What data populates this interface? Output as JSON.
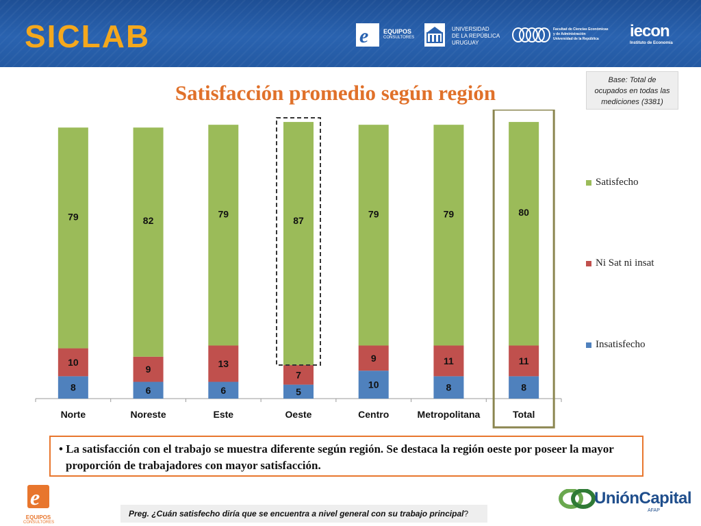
{
  "header": {
    "brand": "SICLAB",
    "logos": {
      "equipos_name": "EQUIPOS",
      "equipos_sub": "CONSULTORES",
      "udelar_line1": "UNIVERSIDAD",
      "udelar_line2": "DE LA REPÚBLICA",
      "udelar_line3": "URUGUAY",
      "fcea_line1": "Facultad de Ciencias Económicas",
      "fcea_line2": "y de Administración",
      "fcea_line3": "Universidad de la República",
      "iecon_name": "iecon",
      "iecon_sub": "Instituto de Economía"
    }
  },
  "base_note": {
    "line1": "Base: Total de",
    "line2": "ocupados en todas las",
    "line3": "mediciones (3381)"
  },
  "chart_data": {
    "type": "bar",
    "stacked": true,
    "title": "Satisfacción promedio según región",
    "categories": [
      "Norte",
      "Noreste",
      "Este",
      "Oeste",
      "Centro",
      "Metropolitana",
      "Total"
    ],
    "series": [
      {
        "name": "Insatisfecho",
        "color": "#4f81bd",
        "values": [
          8,
          6,
          6,
          5,
          10,
          8,
          8
        ]
      },
      {
        "name": "Ni Sat ni insat",
        "color": "#c0504d",
        "values": [
          10,
          9,
          13,
          7,
          9,
          11,
          11
        ]
      },
      {
        "name": "Satisfecho",
        "color": "#9bbb59",
        "values": [
          79,
          82,
          79,
          87,
          79,
          79,
          80
        ]
      }
    ],
    "legend_position": "right",
    "grid": false,
    "highlight": {
      "Oeste": "dashed-box",
      "Total": "solid-box"
    }
  },
  "colors": {
    "accent_orange": "#e0712a",
    "highlight_box": "#8b8650"
  },
  "note": {
    "bullet": "•",
    "text": "La satisfacción con el trabajo se muestra diferente según región. Se destaca la región oeste por poseer la  mayor proporción de trabajadores con mayor satisfacción."
  },
  "question": {
    "text": "Preg. ¿Cuán satisfecho diría que se encuentra a nivel general con su trabajo principal",
    "suffix": "?"
  },
  "footer": {
    "equipos_name": "EQUIPOS",
    "equipos_sub": "CONSULTORES",
    "union_name": "UniónCapital",
    "union_sub": "AFAP"
  }
}
